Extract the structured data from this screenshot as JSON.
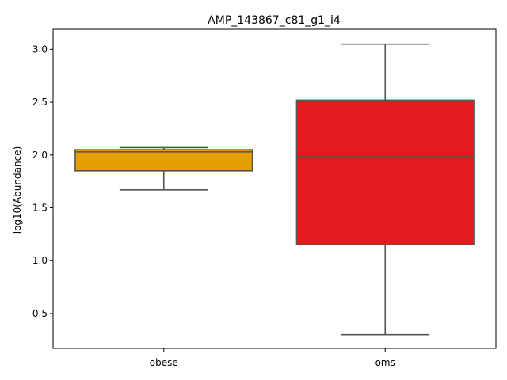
{
  "chart_data": {
    "type": "boxplot",
    "title": "AMP_143867_c81_g1_i4",
    "xlabel": "",
    "ylabel": "log10(Abundance)",
    "ylim": [
      0.17,
      3.19
    ],
    "yticks": [
      0.5,
      1.0,
      1.5,
      2.0,
      2.5,
      3.0
    ],
    "ytick_labels": [
      "0.5",
      "1.0",
      "1.5",
      "2.0",
      "2.5",
      "3.0"
    ],
    "categories": [
      "obese",
      "oms"
    ],
    "boxes": [
      {
        "category": "obese",
        "whisker_low": 1.67,
        "q1": 1.85,
        "median": 2.03,
        "q3": 2.05,
        "whisker_high": 2.07,
        "color": "#e69f00"
      },
      {
        "category": "oms",
        "whisker_low": 0.3,
        "q1": 1.15,
        "median": 1.99,
        "q3": 2.52,
        "whisker_high": 3.05,
        "color": "#e41a1c"
      }
    ],
    "grid": false,
    "legend": "none"
  },
  "colors": {
    "line": "#555555",
    "axes": "#000000",
    "background": "#ffffff"
  }
}
